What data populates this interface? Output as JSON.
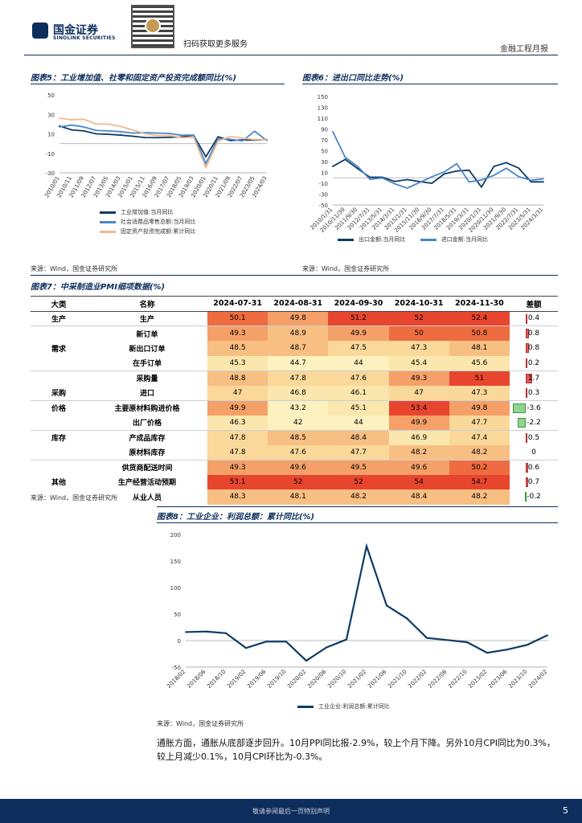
{
  "header": {
    "logo_cn": "国金证券",
    "logo_en": "SINOLINK SECURITIES",
    "scan_text": "扫码获取更多服务",
    "right_label": "金融工程月报"
  },
  "fig5": {
    "title": "图表5：工业增加值、社零和固定资产投资完成额同比(%)",
    "source": "来源：Wind，国金证券研究所",
    "legend": [
      "工业增加值:当月同比",
      "社会消费品零售总额:当月同比",
      "固定资产投资完成额:累计同比"
    ],
    "colors": [
      "#0d3b66",
      "#4a86c8",
      "#f2b98f"
    ]
  },
  "fig6": {
    "title": "图表6：进出口同比走势(%)",
    "source": "来源：Wind，国金证券研究所",
    "legend": [
      "出口金额:当月同比",
      "进口金额:当月同比"
    ],
    "colors": [
      "#0d3b66",
      "#4a86c8"
    ]
  },
  "fig7": {
    "title": "图表7：中采制造业PMI细项数据(%)",
    "source": "来源：Wind，国金证券研究所",
    "headers": [
      "大类",
      "名称",
      "2024-07-31",
      "2024-08-31",
      "2024-09-30",
      "2024-10-31",
      "2024-11-30",
      "差额"
    ],
    "rows": [
      {
        "cat": "生产",
        "name": "生产",
        "v": [
          "50.1",
          "49.8",
          "51.2",
          "52",
          "52.4"
        ],
        "d": "0.4",
        "dv": 0.4,
        "grp": true
      },
      {
        "cat": "",
        "name": "新订单",
        "v": [
          "49.3",
          "48.9",
          "49.9",
          "50",
          "50.8"
        ],
        "d": "0.8",
        "dv": 0.8,
        "grp": true
      },
      {
        "cat": "需求",
        "name": "新出口订单",
        "v": [
          "48.5",
          "48.7",
          "47.5",
          "47.3",
          "48.1"
        ],
        "d": "0.8",
        "dv": 0.8
      },
      {
        "cat": "",
        "name": "在手订单",
        "v": [
          "45.3",
          "44.7",
          "44",
          "45.4",
          "45.6"
        ],
        "d": "0.2",
        "dv": 0.2
      },
      {
        "cat": "",
        "name": "采购量",
        "v": [
          "48.8",
          "47.8",
          "47.6",
          "49.3",
          "51"
        ],
        "d": "1.7",
        "dv": 1.7,
        "grp": true
      },
      {
        "cat": "采购",
        "name": "进口",
        "v": [
          "47",
          "46.8",
          "46.1",
          "47",
          "47.3"
        ],
        "d": "0.3",
        "dv": 0.3
      },
      {
        "cat": "价格",
        "name": "主要原材料购进价格",
        "v": [
          "49.9",
          "43.2",
          "45.1",
          "53.4",
          "49.8"
        ],
        "d": "-3.6",
        "dv": -3.6,
        "grp": true
      },
      {
        "cat": "",
        "name": "出厂价格",
        "v": [
          "46.3",
          "42",
          "44",
          "49.9",
          "47.7"
        ],
        "d": "-2.2",
        "dv": -2.2
      },
      {
        "cat": "库存",
        "name": "产成品库存",
        "v": [
          "47.8",
          "48.5",
          "48.4",
          "46.9",
          "47.4"
        ],
        "d": "0.5",
        "dv": 0.5,
        "grp": true
      },
      {
        "cat": "",
        "name": "原材料库存",
        "v": [
          "47.8",
          "47.6",
          "47.7",
          "48.2",
          "48.2"
        ],
        "d": "0",
        "dv": 0
      },
      {
        "cat": "",
        "name": "供货商配送时间",
        "v": [
          "49.3",
          "49.6",
          "49.5",
          "49.6",
          "50.2"
        ],
        "d": "0.6",
        "dv": 0.6,
        "grp": true
      },
      {
        "cat": "其他",
        "name": "生产经营活动预期",
        "v": [
          "53.1",
          "52",
          "52",
          "54",
          "54.7"
        ],
        "d": "0.7",
        "dv": 0.7
      },
      {
        "cat": "",
        "name": "从业人员",
        "v": [
          "48.3",
          "48.1",
          "48.2",
          "48.4",
          "48.2"
        ],
        "d": "-0.2",
        "dv": -0.2
      }
    ]
  },
  "fig8": {
    "title": "图表8：工业企业：利润总额：累计同比(%)",
    "source": "来源：Wind，国金证券研究所",
    "legend": "工业企业:利润总额:累计同比",
    "color": "#0d3b66"
  },
  "chart_data": [
    {
      "type": "line",
      "title": "图表5：工业增加值、社零和固定资产投资完成额同比(%)",
      "ylim": [
        -30,
        50
      ],
      "yticks": [
        50,
        30,
        10,
        -10,
        -30
      ],
      "x": [
        "2010/01",
        "2010/11",
        "2011/09",
        "2012/07",
        "2013/05",
        "2014/03",
        "2015/01",
        "2015/11",
        "2016/09",
        "2017/07",
        "2018/05",
        "2019/03",
        "2020/01",
        "2020/11",
        "2021/09",
        "2022/07",
        "2023/05",
        "2024/03"
      ],
      "series": [
        {
          "name": "工业增加值:当月同比",
          "values": [
            18,
            14,
            13,
            10,
            9.5,
            8.7,
            7.5,
            6.2,
            6.1,
            6.4,
            6.8,
            8.5,
            -13.5,
            7,
            3.1,
            3.8,
            3.5,
            4.5
          ]
        },
        {
          "name": "社会消费品零售总额:当月同比",
          "values": [
            17,
            19,
            17,
            13.5,
            13,
            12.2,
            10.7,
            11.2,
            10.7,
            10.4,
            8.5,
            8.7,
            -20.5,
            5,
            4.4,
            2.7,
            12.7,
            3.1
          ]
        },
        {
          "name": "固定资产投资完成额:累计同比",
          "values": [
            26,
            24.5,
            25,
            20,
            20,
            17.6,
            13.9,
            10.2,
            8.2,
            8.3,
            6.1,
            6.3,
            -24.5,
            2.6,
            7.3,
            5.7,
            4,
            4.5
          ]
        }
      ]
    },
    {
      "type": "line",
      "title": "图表6：进出口同比走势(%)",
      "ylim": [
        -50,
        150
      ],
      "yticks": [
        150,
        130,
        110,
        90,
        70,
        50,
        30,
        10,
        -10,
        -30,
        -50
      ],
      "x": [
        "2010/1/31",
        "2010/11/30",
        "2011/9/30",
        "2012/7/31",
        "2013/5/31",
        "2014/3/31",
        "2015/1/31",
        "2015/11/30",
        "2016/9/30",
        "2017/7/31",
        "2018/5/31",
        "2019/3/31",
        "2020/1/31",
        "2020/11/30",
        "2021/9/30",
        "2022/7/31",
        "2023/5/31",
        "2024/3/31"
      ],
      "series": [
        {
          "name": "出口金额:当月同比",
          "values": [
            21,
            34,
            17,
            1,
            1,
            -6.6,
            -3.3,
            -6.8,
            -10,
            7.2,
            12.6,
            14,
            -17,
            21,
            28,
            18,
            -7.5,
            -7.5
          ]
        },
        {
          "name": "进口金额:当月同比",
          "values": [
            85,
            38,
            21,
            -2.6,
            -0.3,
            -11,
            -19,
            -8.7,
            1.9,
            11,
            26,
            -7.6,
            -4,
            4.5,
            17.6,
            2.3,
            -4.5,
            -1.9
          ]
        }
      ]
    },
    {
      "type": "line",
      "title": "图表8：工业企业：利润总额：累计同比(%)",
      "ylim": [
        -50,
        200
      ],
      "yticks": [
        200,
        150,
        100,
        50,
        0,
        -50
      ],
      "x": [
        "2018/02",
        "2018/06",
        "2018/10",
        "2019/02",
        "2019/06",
        "2019/10",
        "2020/02",
        "2020/06",
        "2020/10",
        "2021/02",
        "2021/06",
        "2021/10",
        "2022/02",
        "2022/06",
        "2022/10",
        "2023/02",
        "2023/06",
        "2023/10",
        "2024/02"
      ],
      "series": [
        {
          "name": "工业企业:利润总额:累计同比",
          "values": [
            16,
            17,
            14,
            -14,
            -2,
            -2,
            -38,
            -13,
            2,
            178,
            66,
            42,
            5,
            1,
            -3,
            -23,
            -17,
            -8,
            10
          ]
        }
      ]
    }
  ],
  "paragraph": "通胀方面，通胀从底部逐步回升。10月PPI同比报-2.9%，较上个月下降。另外10月CPI同比为0.3%，较上月减少0.1%，10月CPI环比为-0.3%。",
  "footer": {
    "text": "敬请参阅最后一页特别声明",
    "page": "5"
  }
}
